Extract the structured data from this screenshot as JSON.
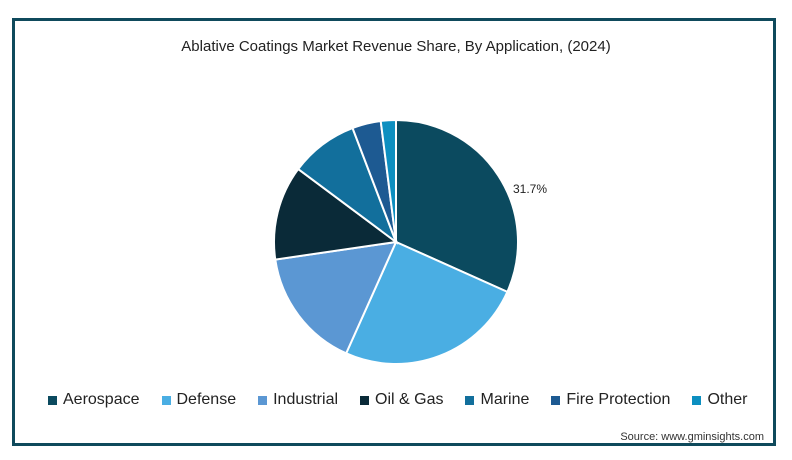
{
  "chart_data": {
    "type": "pie",
    "title": "Ablative Coatings Market Revenue Share, By Application, (2024)",
    "slices": [
      {
        "label": "Aerospace",
        "value": 31.7,
        "color": "#0b4a5f",
        "data_label": "31.7%"
      },
      {
        "label": "Defense",
        "value": 25.0,
        "color": "#4aaee3"
      },
      {
        "label": "Industrial",
        "value": 16.0,
        "color": "#5b97d3"
      },
      {
        "label": "Oil & Gas",
        "value": 12.5,
        "color": "#0a2a38"
      },
      {
        "label": "Marine",
        "value": 9.0,
        "color": "#126f9c"
      },
      {
        "label": "Fire Protection",
        "value": 3.8,
        "color": "#1d5a92"
      },
      {
        "label": "Other",
        "value": 2.0,
        "color": "#0d8fc0"
      }
    ],
    "legend_position": "bottom"
  },
  "source": "Source: www.gminsights.com"
}
